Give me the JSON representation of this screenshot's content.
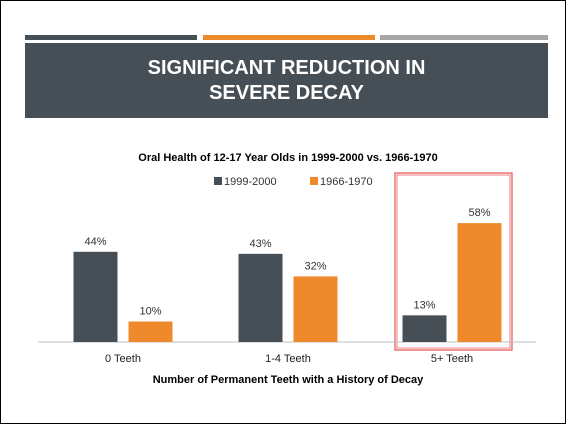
{
  "slide_title": "SIGNIFICANT REDUCTION IN SEVERE DECAY",
  "chart_data": {
    "type": "bar",
    "title": "Oral Health of 12-17 Year Olds in 1999-2000 vs. 1966-1970",
    "x_label": "Number of Permanent Teeth with a History of Decay",
    "categories": [
      "0 Teeth",
      "1-4 Teeth",
      "5+ Teeth"
    ],
    "series": [
      {
        "name": "1999-2000",
        "color": "#464f55",
        "values": [
          44,
          43,
          13
        ],
        "value_labels": [
          "44%",
          "43%",
          "13%"
        ]
      },
      {
        "name": "1966-1970",
        "color": "#ee8a2c",
        "values": [
          10,
          32,
          58
        ],
        "value_labels": [
          "10%",
          "32%",
          "58%"
        ]
      }
    ],
    "legend": "top"
  }
}
